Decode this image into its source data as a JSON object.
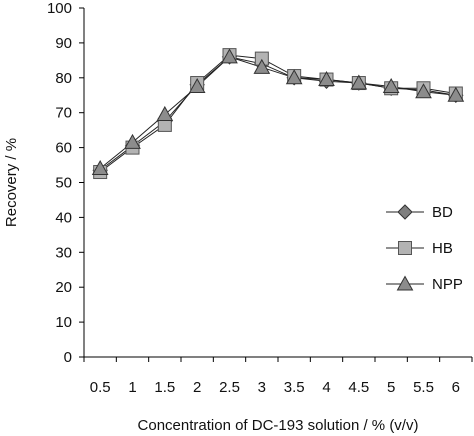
{
  "chart_data": {
    "type": "line",
    "title": "",
    "xlabel": "Concentration of DC-193 solution / % (v/v)",
    "ylabel": "Recovery / %",
    "categories": [
      "0.5",
      "1",
      "1.5",
      "2",
      "2.5",
      "3",
      "3.5",
      "4",
      "4.5",
      "5",
      "5.5",
      "6"
    ],
    "ylim": [
      0,
      100
    ],
    "yticks": [
      "0",
      "10",
      "20",
      "30",
      "40",
      "50",
      "60",
      "70",
      "80",
      "90",
      "100"
    ],
    "grid": false,
    "legend_position": "right",
    "series": [
      {
        "name": "BD",
        "marker": "diamond",
        "color": "#7f7f7f",
        "values": [
          53.5,
          60.5,
          67.5,
          78,
          86,
          84,
          80,
          79,
          78.5,
          77,
          76.5,
          75
        ]
      },
      {
        "name": "HB",
        "marker": "square",
        "color": "#b3b3b3",
        "values": [
          53,
          60,
          66.5,
          78.5,
          86.5,
          85.5,
          80.5,
          79.5,
          78.5,
          77,
          77,
          75.5
        ]
      },
      {
        "name": "NPP",
        "marker": "triangle",
        "color": "#8c8c8c",
        "values": [
          54,
          61.5,
          69.5,
          77.5,
          86,
          83,
          80,
          79.5,
          78.5,
          77.5,
          76,
          75
        ]
      }
    ]
  }
}
